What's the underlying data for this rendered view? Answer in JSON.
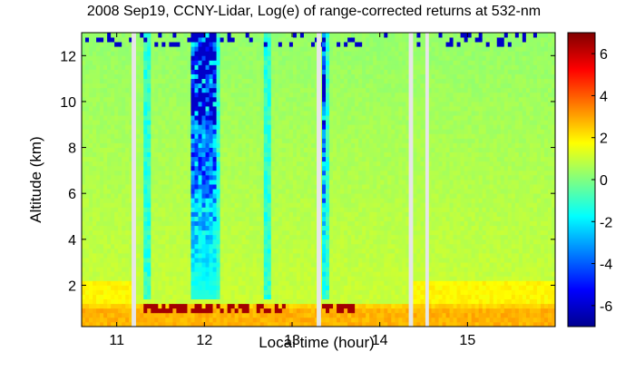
{
  "chart_data": {
    "type": "heatmap",
    "title": "2008 Sep19, CCNY-Lidar, Log(e) of range-corrected returns at 532-nm",
    "xlabel": "Local time (hour)",
    "ylabel": "Altitude (km)",
    "xlim": [
      10.6,
      16.0
    ],
    "ylim": [
      0.2,
      13.0
    ],
    "xticks": [
      11,
      12,
      13,
      14,
      15
    ],
    "yticks": [
      2,
      4,
      6,
      8,
      10,
      12
    ],
    "colorbar": {
      "range": [
        -7,
        7
      ],
      "ticks": [
        6,
        4,
        2,
        0,
        -2,
        -4,
        -6
      ],
      "colormap": "jet"
    },
    "data_gaps_hours": [
      [
        11.17,
        11.22
      ],
      [
        13.28,
        13.33
      ],
      [
        14.33,
        14.38
      ],
      [
        14.52,
        14.56
      ]
    ],
    "layers": {
      "surface_layer_top_km": 1.0,
      "boundary_layer_top_km": 1.3,
      "elevated_residual_layer_km": [
        1.5,
        2.2
      ],
      "high_value_near_surface": 2.5,
      "background_value_low_altitude": 1.0,
      "background_value_high_altitude": 0.3,
      "cloud_base_km": 0.9,
      "cloud_peak_value": 6.5,
      "attenuated_column_value": -6.0
    },
    "cloud_periods_hours": [
      [
        11.3,
        11.8
      ],
      [
        11.85,
        12.5
      ],
      [
        12.55,
        13.0
      ],
      [
        13.35,
        13.7
      ]
    ],
    "grid": false
  }
}
